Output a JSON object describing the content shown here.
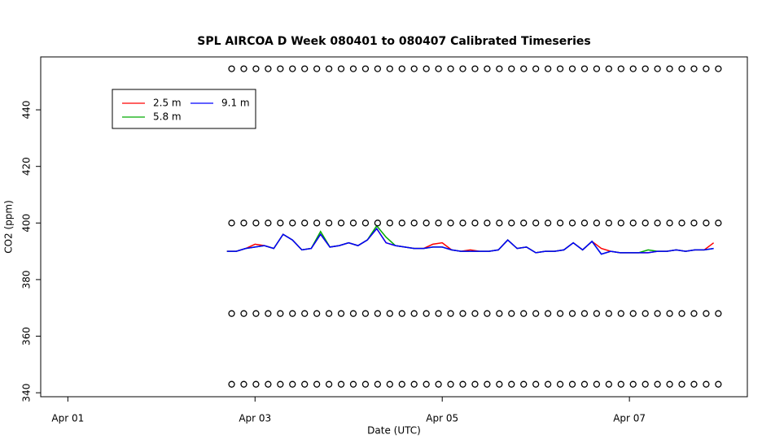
{
  "chart_data": {
    "type": "line",
    "title": "SPL AIRCOA D  Week 080401 to 080407  Calibrated Timeseries",
    "x_label": "Date (UTC)",
    "y_label": "CO2 (ppm)",
    "xlim": [
      0.71,
      8.26
    ],
    "ylim": [
      338.6,
      458.7
    ],
    "xticks": [
      {
        "value": 1,
        "label": "Apr 01"
      },
      {
        "value": 3,
        "label": "Apr 03"
      },
      {
        "value": 5,
        "label": "Apr 05"
      },
      {
        "value": 7,
        "label": "Apr 07"
      }
    ],
    "yticks": [
      340,
      360,
      380,
      400,
      420,
      440
    ],
    "x": [
      2.7,
      2.8,
      2.9,
      3.0,
      3.1,
      3.2,
      3.3,
      3.4,
      3.5,
      3.6,
      3.7,
      3.8,
      3.9,
      4.0,
      4.1,
      4.2,
      4.3,
      4.4,
      4.5,
      4.6,
      4.7,
      4.8,
      4.9,
      5.0,
      5.1,
      5.2,
      5.3,
      5.4,
      5.5,
      5.6,
      5.7,
      5.8,
      5.9,
      6.0,
      6.1,
      6.2,
      6.3,
      6.4,
      6.5,
      6.6,
      6.7,
      6.8,
      6.9,
      7.0,
      7.1,
      7.2,
      7.3,
      7.4,
      7.5,
      7.6,
      7.7,
      7.8,
      7.9
    ],
    "series": [
      {
        "name": "2.5 m",
        "color": "#ff0000",
        "values": [
          390,
          390,
          391,
          392.5,
          392,
          391,
          396,
          394,
          390.5,
          391,
          396,
          391.5,
          392,
          393,
          392,
          394,
          398,
          393,
          392,
          391.5,
          391,
          391,
          392.5,
          393,
          390.5,
          390,
          390.5,
          390,
          390,
          390.5,
          394,
          391,
          391.5,
          389.5,
          390,
          390,
          390.5,
          393,
          390.5,
          393.5,
          391,
          390,
          389.5,
          389.5,
          389.5,
          389.5,
          390,
          390,
          390.5,
          390,
          390.5,
          390.5,
          393
        ]
      },
      {
        "name": "5.8 m",
        "color": "#00aa00",
        "values": [
          390,
          390,
          391,
          391.5,
          392,
          391,
          396,
          394,
          390.5,
          391,
          397,
          391.5,
          392,
          393,
          392,
          394,
          399,
          395,
          392,
          391.5,
          391,
          391,
          391.5,
          391.5,
          390.5,
          390,
          390,
          390,
          390,
          390.5,
          394,
          391,
          391.5,
          389.5,
          390,
          390,
          390.5,
          393,
          390.5,
          393.5,
          389,
          390,
          389.5,
          389.5,
          389.5,
          390.5,
          390,
          390,
          390.5,
          390,
          390.5,
          390.5,
          391
        ]
      },
      {
        "name": "9.1 m",
        "color": "#0000ff",
        "values": [
          390,
          390,
          391,
          391.5,
          392,
          391,
          396,
          394,
          390.5,
          391,
          396,
          391.5,
          392,
          393,
          392,
          394,
          398,
          393,
          392,
          391.5,
          391,
          391,
          391.5,
          391.5,
          390.5,
          390,
          390,
          390,
          390,
          390.5,
          394,
          391,
          391.5,
          389.5,
          390,
          390,
          390.5,
          393,
          390.5,
          393.5,
          389,
          390,
          389.5,
          389.5,
          389.5,
          389.5,
          390,
          390,
          390.5,
          390,
          390.5,
          390.5,
          391
        ]
      }
    ],
    "point_x": [
      2.75,
      2.88,
      3.01,
      3.14,
      3.27,
      3.4,
      3.53,
      3.66,
      3.79,
      3.92,
      4.05,
      4.18,
      4.31,
      4.44,
      4.57,
      4.7,
      4.83,
      4.96,
      5.09,
      5.22,
      5.35,
      5.48,
      5.61,
      5.74,
      5.87,
      6,
      6.13,
      6.26,
      6.39,
      6.52,
      6.65,
      6.78,
      6.91,
      7.04,
      7.17,
      7.3,
      7.43,
      7.56,
      7.69,
      7.82,
      7.95
    ],
    "point_series": [
      {
        "color": "#000000",
        "values": [
          454.5,
          454.5,
          454.5,
          454.5,
          454.5,
          454.5,
          454.5,
          454.5,
          454.5,
          454.5,
          454.5,
          454.5,
          454.5,
          454.5,
          454.5,
          454.5,
          454.5,
          454.5,
          454.5,
          454.5,
          454.5,
          454.5,
          454.5,
          454.5,
          454.5,
          454.5,
          454.5,
          454.5,
          454.5,
          454.5,
          454.5,
          454.5,
          454.5,
          454.5,
          454.5,
          454.5,
          454.5,
          454.5,
          454.5,
          454.5,
          454.5
        ]
      },
      {
        "color": "#000000",
        "values": [
          400,
          400,
          400,
          400,
          400,
          400,
          400,
          400,
          400,
          400,
          400,
          400,
          400,
          400,
          400,
          400,
          400,
          400,
          400,
          400,
          400,
          400,
          400,
          400,
          400,
          400,
          400,
          400,
          400,
          400,
          400,
          400,
          400,
          400,
          400,
          400,
          400,
          400,
          400,
          400,
          400
        ]
      },
      {
        "color": "#000000",
        "values": [
          368,
          368,
          368,
          368,
          368,
          368,
          368,
          368,
          368,
          368,
          368,
          368,
          368,
          368,
          368,
          368,
          368,
          368,
          368,
          368,
          368,
          368,
          368,
          368,
          368,
          368,
          368,
          368,
          368,
          368,
          368,
          368,
          368,
          368,
          368,
          368,
          368,
          368,
          368,
          368,
          368
        ]
      },
      {
        "color": "#000000",
        "values": [
          343,
          343,
          343,
          343,
          343,
          343,
          343,
          343,
          343,
          343,
          343,
          343,
          343,
          343,
          343,
          343,
          343,
          343,
          343,
          343,
          343,
          343,
          343,
          343,
          343,
          343,
          343,
          343,
          343,
          343,
          343,
          343,
          343,
          343,
          343,
          343,
          343,
          343,
          343,
          343,
          343
        ]
      }
    ],
    "legend": "top-left"
  }
}
